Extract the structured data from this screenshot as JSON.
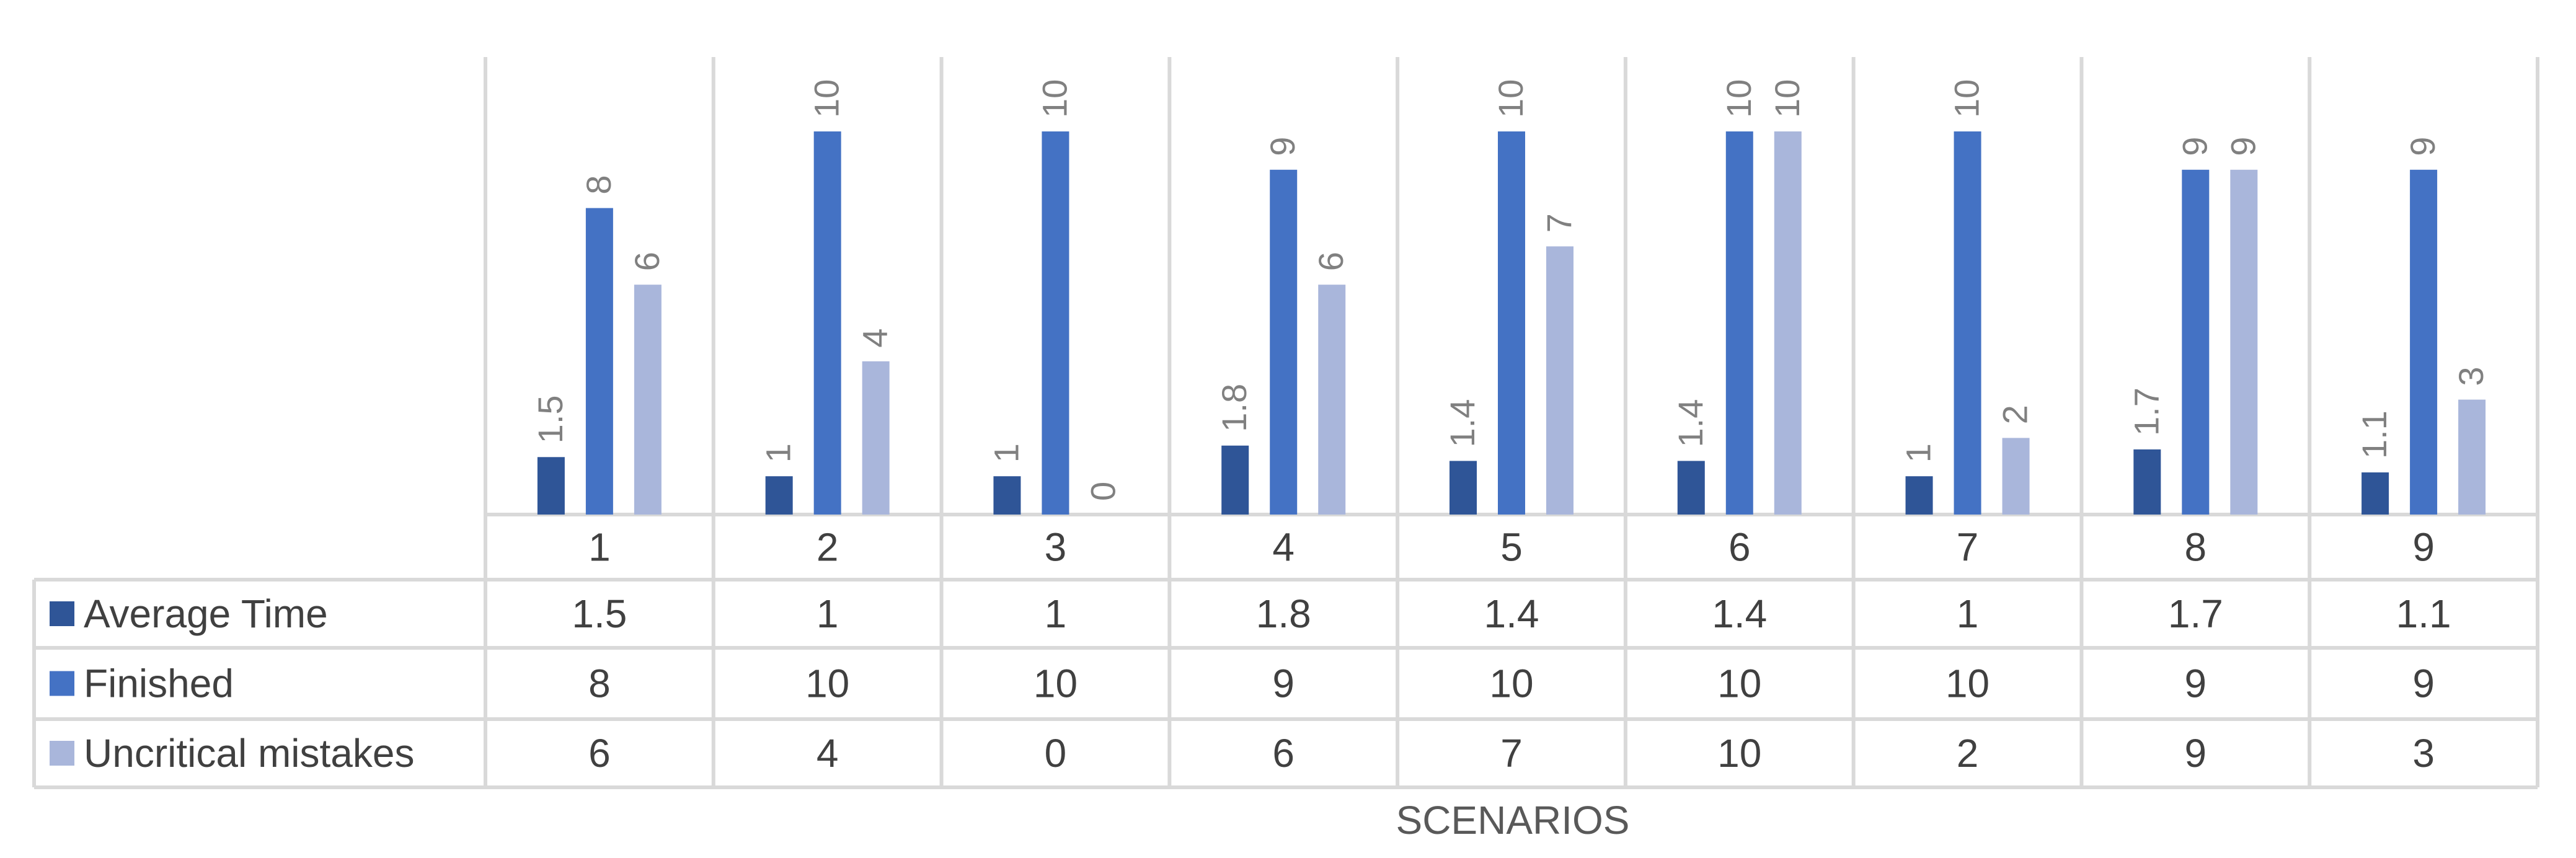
{
  "chart_data": {
    "type": "bar",
    "xlabel": "SCENARIOS",
    "ylabel": "",
    "ylim": [
      0,
      10
    ],
    "grid": "vertical category separators; data table below plot",
    "legend": "data table row keys",
    "categories": [
      "1",
      "2",
      "3",
      "4",
      "5",
      "6",
      "7",
      "8",
      "9"
    ],
    "series": [
      {
        "name": "Average Time",
        "color": "#2f5597",
        "values": [
          1.5,
          1,
          1,
          1.8,
          1.4,
          1.4,
          1,
          1.7,
          1.1
        ]
      },
      {
        "name": "Finished",
        "color": "#4472c4",
        "values": [
          8,
          10,
          10,
          9,
          10,
          10,
          10,
          9,
          9
        ]
      },
      {
        "name": "Uncritical mistakes",
        "color": "#a9b6db",
        "values": [
          6,
          4,
          0,
          6,
          7,
          10,
          2,
          9,
          3
        ]
      }
    ]
  }
}
